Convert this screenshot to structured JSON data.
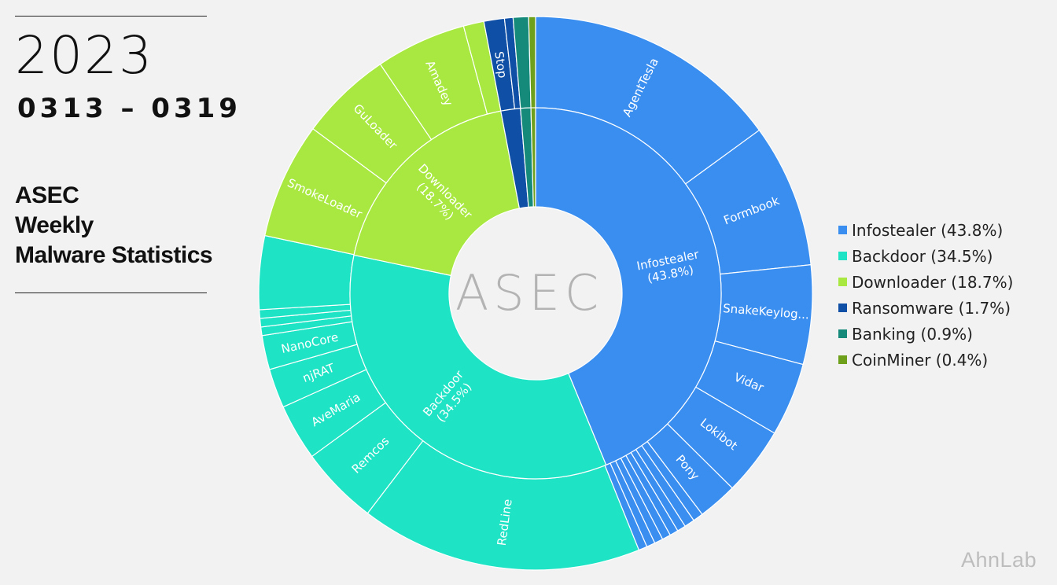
{
  "header": {
    "year": "2023",
    "date_range": "0313 – 0319",
    "title_lines": [
      "ASEC",
      "Weekly",
      "Malware Statistics"
    ]
  },
  "center_logo": "ASEC",
  "footer_logo": "AhnLab",
  "colors": {
    "Infostealer": "#3a8ef0",
    "Backdoor": "#1ee3c4",
    "Downloader": "#a8e840",
    "Ransomware": "#0f4fa6",
    "Banking": "#158a7a",
    "CoinMiner": "#6ea01c"
  },
  "legend": [
    {
      "label": "Infostealer (43.8%)",
      "category": "Infostealer"
    },
    {
      "label": "Backdoor (34.5%)",
      "category": "Backdoor"
    },
    {
      "label": "Downloader (18.7%)",
      "category": "Downloader"
    },
    {
      "label": "Ransomware (1.7%)",
      "category": "Ransomware"
    },
    {
      "label": "Banking (0.9%)",
      "category": "Banking"
    },
    {
      "label": "CoinMiner (0.4%)",
      "category": "CoinMiner"
    }
  ],
  "chart_data": {
    "type": "pie",
    "variant": "sunburst",
    "legend_position": "right",
    "inner_ring": [
      {
        "name": "Infostealer",
        "value": 43.8,
        "label_lines": [
          "Infostealer",
          "(43.8%)"
        ]
      },
      {
        "name": "Backdoor",
        "value": 34.5,
        "label_lines": [
          "Backdoor",
          "(34.5%)"
        ]
      },
      {
        "name": "Downloader",
        "value": 18.7,
        "label_lines": [
          "Downloader",
          "(18.7%)"
        ]
      },
      {
        "name": "Ransomware",
        "value": 1.7,
        "label_lines": []
      },
      {
        "name": "Banking",
        "value": 0.9,
        "label_lines": []
      },
      {
        "name": "CoinMiner",
        "value": 0.4,
        "label_lines": []
      }
    ],
    "outer_ring": [
      {
        "parent": "Infostealer",
        "name": "AgentTesla",
        "value": 15.0,
        "label": "AgentTesla"
      },
      {
        "parent": "Infostealer",
        "name": "Formbook",
        "value": 8.4,
        "label": "Formbook"
      },
      {
        "parent": "Infostealer",
        "name": "SnakeKeylogger",
        "value": 5.8,
        "label": "SnakeKeylog..."
      },
      {
        "parent": "Infostealer",
        "name": "Vidar",
        "value": 4.3,
        "label": "Vidar"
      },
      {
        "parent": "Infostealer",
        "name": "Lokibot",
        "value": 4.0,
        "label": "Lokibot"
      },
      {
        "parent": "Infostealer",
        "name": "Pony",
        "value": 2.3,
        "label": "Pony"
      },
      {
        "parent": "Infostealer",
        "name": "other-1",
        "value": 0.6,
        "label": ""
      },
      {
        "parent": "Infostealer",
        "name": "other-2",
        "value": 0.6,
        "label": ""
      },
      {
        "parent": "Infostealer",
        "name": "other-3",
        "value": 0.5,
        "label": ""
      },
      {
        "parent": "Infostealer",
        "name": "other-4",
        "value": 0.5,
        "label": ""
      },
      {
        "parent": "Infostealer",
        "name": "other-5",
        "value": 0.5,
        "label": ""
      },
      {
        "parent": "Infostealer",
        "name": "other-6",
        "value": 0.5,
        "label": ""
      },
      {
        "parent": "Infostealer",
        "name": "other-7",
        "value": 0.5,
        "label": ""
      },
      {
        "parent": "Infostealer",
        "name": "other-8",
        "value": 0.5,
        "label": ""
      },
      {
        "parent": "Backdoor",
        "name": "RedLine",
        "value": 16.5,
        "label": "RedLine"
      },
      {
        "parent": "Backdoor",
        "name": "Remcos",
        "value": 4.6,
        "label": "Remcos"
      },
      {
        "parent": "Backdoor",
        "name": "AveMaria",
        "value": 3.3,
        "label": "AveMaria"
      },
      {
        "parent": "Backdoor",
        "name": "njRAT",
        "value": 2.3,
        "label": "njRAT"
      },
      {
        "parent": "Backdoor",
        "name": "NanoCore",
        "value": 2.0,
        "label": "NanoCore"
      },
      {
        "parent": "Backdoor",
        "name": "other-a",
        "value": 0.5,
        "label": ""
      },
      {
        "parent": "Backdoor",
        "name": "other-b",
        "value": 0.5,
        "label": ""
      },
      {
        "parent": "Backdoor",
        "name": "other-c",
        "value": 0.5,
        "label": ""
      },
      {
        "parent": "Backdoor",
        "name": "other-d",
        "value": 4.3,
        "label": ""
      },
      {
        "parent": "Downloader",
        "name": "SmokeLoader",
        "value": 6.8,
        "label": "SmokeLoader"
      },
      {
        "parent": "Downloader",
        "name": "GuLoader",
        "value": 5.4,
        "label": "GuLoader"
      },
      {
        "parent": "Downloader",
        "name": "Amadey",
        "value": 5.3,
        "label": "Amadey"
      },
      {
        "parent": "Downloader",
        "name": "other-e",
        "value": 1.2,
        "label": ""
      },
      {
        "parent": "Ransomware",
        "name": "Stop",
        "value": 1.2,
        "label": "Stop"
      },
      {
        "parent": "Ransomware",
        "name": "other-f",
        "value": 0.5,
        "label": ""
      },
      {
        "parent": "Banking",
        "name": "banking-1",
        "value": 0.9,
        "label": ""
      },
      {
        "parent": "CoinMiner",
        "name": "coinminer-1",
        "value": 0.4,
        "label": ""
      }
    ]
  }
}
